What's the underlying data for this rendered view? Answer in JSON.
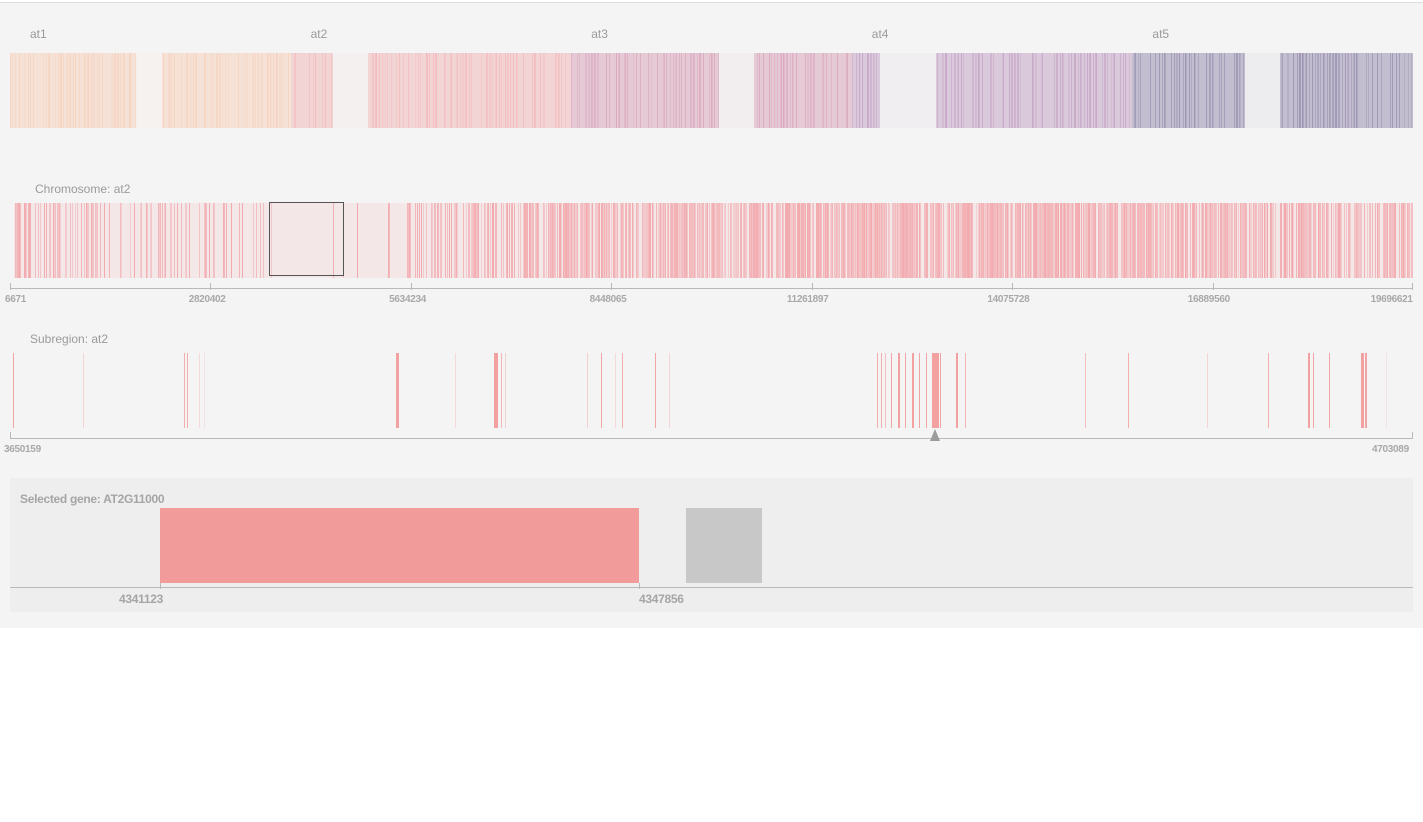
{
  "genome": {
    "chromosomes": [
      {
        "name": "at1",
        "start": 0.0,
        "end": 0.2,
        "color": "#f6d2bd"
      },
      {
        "name": "at2",
        "start": 0.2,
        "end": 0.4,
        "color": "#f3b9bc"
      },
      {
        "name": "at3",
        "start": 0.4,
        "end": 0.6,
        "color": "#d9a6bc"
      },
      {
        "name": "at4",
        "start": 0.6,
        "end": 0.8,
        "color": "#c5a4c6"
      },
      {
        "name": "at5",
        "start": 0.8,
        "end": 1.0,
        "color": "#9a92b0"
      }
    ],
    "gaps": [
      {
        "start": 0.09,
        "end": 0.108
      },
      {
        "start": 0.23,
        "end": 0.255
      },
      {
        "start": 0.505,
        "end": 0.53
      },
      {
        "start": 0.62,
        "end": 0.66
      },
      {
        "start": 0.88,
        "end": 0.905
      }
    ]
  },
  "chromosome_view": {
    "title": "Chromosome: at2",
    "color": "#f2a4a9",
    "density_segments": [
      {
        "start": 0.0,
        "end": 0.06,
        "density": 0.55
      },
      {
        "start": 0.06,
        "end": 0.13,
        "density": 0.25
      },
      {
        "start": 0.13,
        "end": 0.18,
        "density": 0.2
      },
      {
        "start": 0.18,
        "end": 0.255,
        "density": 0.12
      },
      {
        "start": 0.255,
        "end": 0.28,
        "density": 0.05
      },
      {
        "start": 0.28,
        "end": 0.38,
        "density": 0.55
      },
      {
        "start": 0.38,
        "end": 0.66,
        "density": 0.8
      },
      {
        "start": 0.66,
        "end": 0.84,
        "density": 0.85
      },
      {
        "start": 0.84,
        "end": 1.0,
        "density": 0.75
      }
    ],
    "axis_ticks": [
      "6671",
      "2820402",
      "5634234",
      "8448065",
      "11261897",
      "14075728",
      "16889560",
      "19696621"
    ],
    "selection": {
      "from": 3650159,
      "to": 4703089
    }
  },
  "subregion_view": {
    "title": "Subregion: at2",
    "color": "#f29b9b",
    "axis_ticks": [
      "3650159",
      "4703089"
    ],
    "selected_gene_marker": 0.659,
    "features": [
      {
        "pos": 0.002,
        "w": 1.5,
        "a": 0.9
      },
      {
        "pos": 0.052,
        "w": 1,
        "a": 0.35
      },
      {
        "pos": 0.124,
        "w": 1,
        "a": 0.8
      },
      {
        "pos": 0.126,
        "w": 1,
        "a": 0.8
      },
      {
        "pos": 0.135,
        "w": 1,
        "a": 0.3
      },
      {
        "pos": 0.138,
        "w": 1,
        "a": 0.2
      },
      {
        "pos": 0.275,
        "w": 3,
        "a": 0.95
      },
      {
        "pos": 0.317,
        "w": 1,
        "a": 0.3
      },
      {
        "pos": 0.345,
        "w": 4,
        "a": 0.95
      },
      {
        "pos": 0.35,
        "w": 1,
        "a": 0.7
      },
      {
        "pos": 0.353,
        "w": 1,
        "a": 0.4
      },
      {
        "pos": 0.411,
        "w": 1,
        "a": 0.4
      },
      {
        "pos": 0.421,
        "w": 1,
        "a": 0.9
      },
      {
        "pos": 0.431,
        "w": 1,
        "a": 0.3
      },
      {
        "pos": 0.436,
        "w": 1,
        "a": 0.8
      },
      {
        "pos": 0.46,
        "w": 1,
        "a": 0.9
      },
      {
        "pos": 0.47,
        "w": 1,
        "a": 0.35
      },
      {
        "pos": 0.618,
        "w": 1,
        "a": 0.8
      },
      {
        "pos": 0.621,
        "w": 1,
        "a": 0.8
      },
      {
        "pos": 0.624,
        "w": 1,
        "a": 0.6
      },
      {
        "pos": 0.628,
        "w": 1,
        "a": 0.9
      },
      {
        "pos": 0.633,
        "w": 2,
        "a": 0.95
      },
      {
        "pos": 0.638,
        "w": 1,
        "a": 0.9
      },
      {
        "pos": 0.643,
        "w": 2,
        "a": 0.95
      },
      {
        "pos": 0.648,
        "w": 1,
        "a": 0.9
      },
      {
        "pos": 0.653,
        "w": 1,
        "a": 0.9
      },
      {
        "pos": 0.657,
        "w": 7,
        "a": 0.95
      },
      {
        "pos": 0.663,
        "w": 1,
        "a": 0.9
      },
      {
        "pos": 0.674,
        "w": 2,
        "a": 0.95
      },
      {
        "pos": 0.681,
        "w": 1,
        "a": 0.7
      },
      {
        "pos": 0.766,
        "w": 1,
        "a": 0.6
      },
      {
        "pos": 0.797,
        "w": 1,
        "a": 0.8
      },
      {
        "pos": 0.853,
        "w": 1,
        "a": 0.35
      },
      {
        "pos": 0.897,
        "w": 1,
        "a": 0.8
      },
      {
        "pos": 0.925,
        "w": 2,
        "a": 0.95
      },
      {
        "pos": 0.929,
        "w": 1,
        "a": 0.9
      },
      {
        "pos": 0.94,
        "w": 1,
        "a": 0.9
      },
      {
        "pos": 0.963,
        "w": 3,
        "a": 0.95
      },
      {
        "pos": 0.966,
        "w": 2,
        "a": 0.9
      },
      {
        "pos": 0.981,
        "w": 1,
        "a": 0.2
      }
    ]
  },
  "gene_view": {
    "title": "Selected gene: AT2G11000",
    "start_label": "4341123",
    "end_label": "4347856"
  }
}
